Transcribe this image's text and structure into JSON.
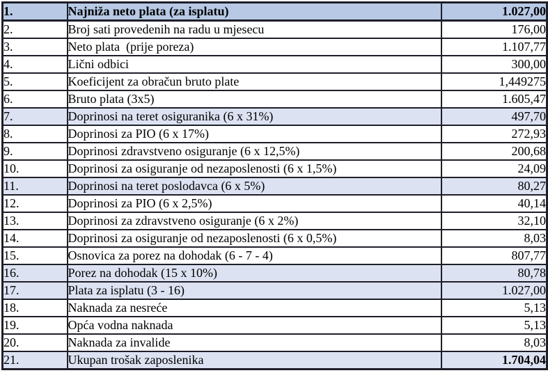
{
  "document": {
    "title": "Obračun plate (salary calculation table)",
    "language": "bs"
  },
  "colors": {
    "header_row_background": "#b7c9e5",
    "accent_row_background": "#dce2f1",
    "table_border": "#1e1e28",
    "text": "#000000",
    "page_background": "#ffffff"
  },
  "table": {
    "columns": [
      "number",
      "description",
      "amount"
    ],
    "rows": [
      {
        "num": "1.",
        "label": "Najniža neto plata (za isplatu)",
        "value": "1.027,00",
        "emphasis": "header",
        "value_bold": true
      },
      {
        "num": "2.",
        "label": "Broj sati provedenih na radu u mjesecu",
        "value": "176,00",
        "emphasis": "none",
        "value_bold": false
      },
      {
        "num": "3.",
        "label": "Neto plata  (prije poreza)",
        "value": "1.107,77",
        "emphasis": "none",
        "value_bold": false
      },
      {
        "num": "4.",
        "label": "Lični odbici",
        "value": "300,00",
        "emphasis": "none",
        "value_bold": false
      },
      {
        "num": "5.",
        "label": "Koeficijent za obračun bruto plate",
        "value": "1,449275",
        "emphasis": "none",
        "value_bold": false
      },
      {
        "num": "6.",
        "label": "Bruto plata (3x5)",
        "value": "1.605,47",
        "emphasis": "none",
        "value_bold": false
      },
      {
        "num": "7.",
        "label": "Doprinosi na teret osiguranika (6 x 31%)",
        "value": "497,70",
        "emphasis": "accent",
        "value_bold": false
      },
      {
        "num": "8.",
        "label": "Doprinosi za PIO (6 x 17%)",
        "value": "272,93",
        "emphasis": "none",
        "value_bold": false
      },
      {
        "num": "9.",
        "label": "Doprinosi zdravstveno osiguranje (6 x 12,5%)",
        "value": "200,68",
        "emphasis": "none",
        "value_bold": false
      },
      {
        "num": "10.",
        "label": "Doprinosi za osiguranje od nezaposlenosti (6 x 1,5%)",
        "value": "24,09",
        "emphasis": "none",
        "value_bold": false
      },
      {
        "num": "11.",
        "label": "Doprinosi na teret poslodavca (6 x 5%)",
        "value": "80,27",
        "emphasis": "accent",
        "value_bold": false
      },
      {
        "num": "12.",
        "label": "Doprinosi za PIO (6 x 2,5%)",
        "value": "40,14",
        "emphasis": "none",
        "value_bold": false
      },
      {
        "num": "13.",
        "label": "Doprinosi za zdravstveno osiguranje (6 x 2%)",
        "value": "32,10",
        "emphasis": "none",
        "value_bold": false
      },
      {
        "num": "14.",
        "label": "Doprinosi za osiguranje od nezaposlenosti (6 x 0,5%)",
        "value": "8,03",
        "emphasis": "none",
        "value_bold": false
      },
      {
        "num": "15.",
        "label": "Osnovica za porez na dohodak (6 - 7 - 4)",
        "value": "807,77",
        "emphasis": "none",
        "value_bold": false
      },
      {
        "num": "16.",
        "label": "Porez na dohodak (15 x 10%)",
        "value": "80,78",
        "emphasis": "accent",
        "value_bold": false
      },
      {
        "num": "17.",
        "label": "Plata za isplatu (3 - 16)",
        "value": "1.027,00",
        "emphasis": "accent",
        "value_bold": false
      },
      {
        "num": "18.",
        "label": "Naknada za nesreće",
        "value": "5,13",
        "emphasis": "none",
        "value_bold": false
      },
      {
        "num": "19.",
        "label": "Opća vodna naknada",
        "value": "5,13",
        "emphasis": "none",
        "value_bold": false
      },
      {
        "num": "20.",
        "label": "Naknada za invalide",
        "value": "8,03",
        "emphasis": "none",
        "value_bold": false
      },
      {
        "num": "21.",
        "label": "Ukupan trošak zaposlenika",
        "value": "1.704,04",
        "emphasis": "accent",
        "value_bold": true
      }
    ]
  }
}
